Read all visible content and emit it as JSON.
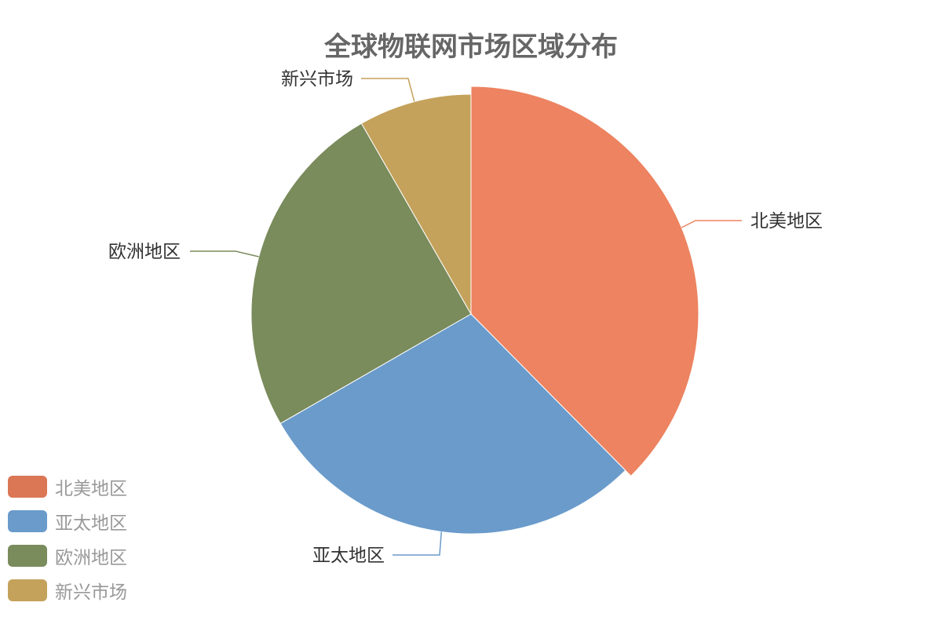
{
  "chart_data": {
    "type": "pie",
    "title": "全球物联网市场区域分布",
    "categories": [
      "北美地区",
      "亚太地区",
      "欧洲地区",
      "新兴市场"
    ],
    "values": [
      37.6,
      29.1,
      25.0,
      8.3
    ],
    "colors": [
      "#DC7756",
      "#6A9BCB",
      "#7A8B5C",
      "#C4A25B"
    ],
    "highlight_color": "#ED8360",
    "highlighted": "北美地区",
    "legend_position": "bottom-left",
    "start_angle": "top, clockwise"
  }
}
